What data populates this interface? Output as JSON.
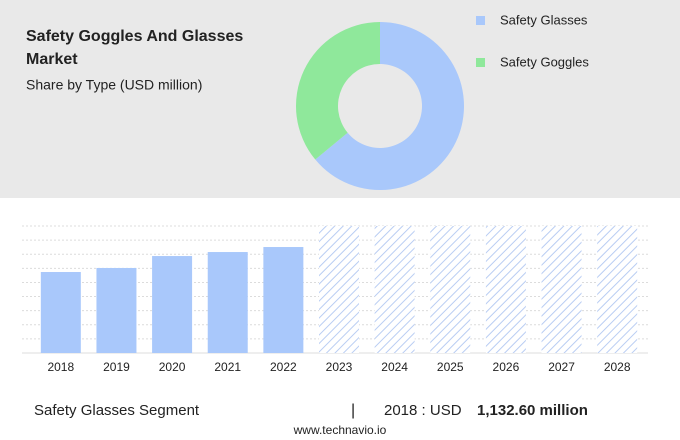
{
  "chart_data": [
    {
      "type": "pie",
      "title": "Safety Goggles And Glasses Market",
      "subtitle": "Share by Type (USD million)",
      "categories": [
        "Safety Glasses",
        "Safety Goggles"
      ],
      "values": [
        64,
        36
      ],
      "colors": [
        "#a9c8fb",
        "#8fe89b"
      ]
    },
    {
      "type": "bar",
      "categories": [
        "2018",
        "2019",
        "2020",
        "2021",
        "2022",
        "2023",
        "2024",
        "2025",
        "2026",
        "2027",
        "2028"
      ],
      "values": [
        1132.6,
        1189,
        1356,
        1412,
        1482,
        null,
        null,
        null,
        null,
        null,
        null
      ],
      "color": "#a9c8fb",
      "ylim": [
        0,
        1776
      ]
    }
  ],
  "footer": {
    "segment": "Safety Glasses Segment",
    "separator": "|",
    "label": "2018 : USD",
    "value": "1,132.60 million",
    "source": "www.technavio.io"
  }
}
